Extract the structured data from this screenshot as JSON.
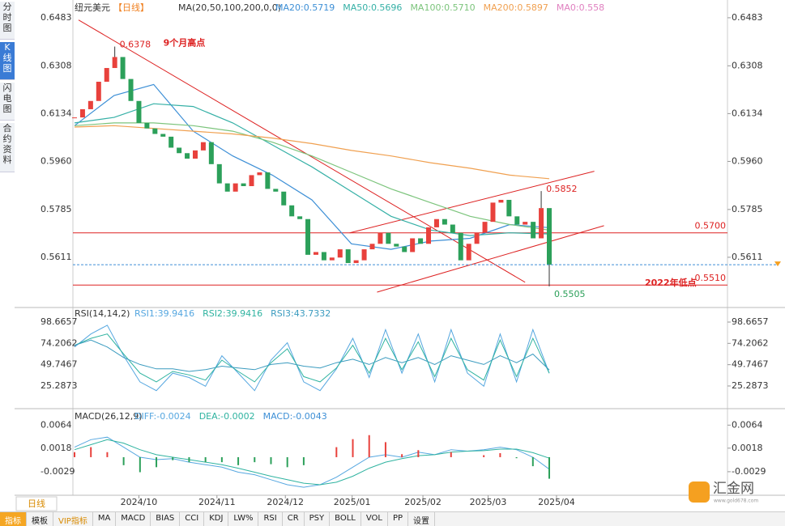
{
  "sidebar": [
    "分时图",
    "K线图",
    "闪电图",
    "合约资料"
  ],
  "header": {
    "symbol": "纽元美元",
    "period": "【日线】",
    "ma_title": "MA(20,50,100,200,0,0)",
    "ma_legend": [
      "MA20:0.5719",
      "MA50:0.5696",
      "MA100:0.5710",
      "MA200:0.5897",
      "MA0:0.558"
    ]
  },
  "chart_data": [
    {
      "type": "candlestick",
      "ylim": [
        0.5434,
        0.6524
      ],
      "yticks": [
        0.6483,
        0.6308,
        0.6134,
        {
          "value": 0.596,
          "label": "0.5960"
        },
        0.5785,
        0.5611
      ],
      "xticks": [
        {
          "value": 8,
          "label": "2024/10"
        },
        {
          "value": 17.7,
          "label": "2024/11"
        },
        {
          "value": 26.2,
          "label": "2024/12"
        },
        {
          "value": 34.5,
          "label": "2025/01"
        },
        {
          "value": 43.3,
          "label": "2025/02"
        },
        {
          "value": 51.4,
          "label": "2025/03"
        },
        {
          "value": 59.9,
          "label": "2025/04"
        }
      ],
      "up_color": "#e8413c",
      "down_color": "#2ca05a",
      "values": [
        0.612,
        0.615,
        0.618,
        0.625,
        0.63,
        0.634,
        0.626,
        0.618,
        0.61,
        0.608,
        0.606,
        0.605,
        0.601,
        0.599,
        0.597,
        0.6,
        0.603,
        0.595,
        0.588,
        0.585,
        0.588,
        0.587,
        0.591,
        0.592,
        0.586,
        0.585,
        0.58,
        0.576,
        0.575,
        0.562,
        0.563,
        0.56,
        0.561,
        0.564,
        0.559,
        0.56,
        0.564,
        0.566,
        0.57,
        0.566,
        0.565,
        0.563,
        0.568,
        0.566,
        0.572,
        0.575,
        0.573,
        0.57,
        0.56,
        0.566,
        0.57,
        0.574,
        0.581,
        0.582,
        0.576,
        0.573,
        0.574,
        0.568,
        0.579,
        0.5584
      ],
      "series": [
        {
          "name": "MA20",
          "color": "#3d8fd6",
          "values": [
            0.609,
            0.62,
            0.624,
            0.607,
            0.598,
            0.591,
            0.582,
            0.566,
            0.564,
            0.567,
            0.568,
            0.573,
            0.5719
          ]
        },
        {
          "name": "MA50",
          "color": "#35b0a6",
          "values": [
            0.61,
            0.612,
            0.617,
            0.616,
            0.61,
            0.602,
            0.594,
            0.585,
            0.576,
            0.571,
            0.569,
            0.57,
            0.5696
          ]
        },
        {
          "name": "MA100",
          "color": "#7cc47c",
          "values": [
            0.609,
            0.61,
            0.61,
            0.609,
            0.607,
            0.603,
            0.598,
            0.592,
            0.586,
            0.581,
            0.576,
            0.573,
            0.571
          ]
        },
        {
          "name": "MA200",
          "color": "#f0a050",
          "values": [
            0.6085,
            0.609,
            0.608,
            0.607,
            0.606,
            0.6045,
            0.6025,
            0.6,
            0.598,
            0.5955,
            0.5935,
            0.591,
            0.5897
          ]
        }
      ],
      "levels": [
        {
          "value": 0.57,
          "label": "0.5700"
        },
        {
          "value": 0.551,
          "label": "0.5510",
          "text": "2022年低点"
        }
      ],
      "extremes": [
        {
          "value": 0.6378,
          "index": 5,
          "text": "9个月高点"
        },
        {
          "value": 0.5852,
          "index": 58
        },
        {
          "value": 0.5505,
          "index": 59
        }
      ],
      "trendlines": [
        {
          "from": [
            0.5,
            0.6475
          ],
          "to": [
            56,
            0.552
          ]
        },
        {
          "from": [
            34.2,
            0.57
          ],
          "to": [
            64.6,
            0.5924
          ]
        },
        {
          "from": [
            37.6,
            0.5484
          ],
          "to": [
            65.8,
            0.5726
          ]
        }
      ]
    },
    {
      "type": "line",
      "title": "RSI(14,14,2)",
      "ylim": [
        1.1,
        112.6
      ],
      "yticks": [
        98.6657,
        74.2062,
        49.7467,
        25.2873
      ],
      "series": [
        {
          "name": "RSI1:39.9416",
          "color": "#56a7e0",
          "values": [
            70,
            85,
            95,
            60,
            30,
            20,
            40,
            35,
            25,
            60,
            40,
            20,
            55,
            75,
            30,
            20,
            45,
            80,
            35,
            90,
            40,
            85,
            30,
            90,
            40,
            25,
            85,
            30,
            90,
            39.94
          ]
        },
        {
          "name": "RSI2:39.9416",
          "color": "#2fb3a0",
          "values": [
            72,
            80,
            85,
            62,
            40,
            30,
            42,
            38,
            32,
            55,
            42,
            30,
            52,
            68,
            36,
            30,
            46,
            72,
            40,
            80,
            44,
            76,
            36,
            80,
            44,
            32,
            78,
            36,
            80,
            39.94
          ]
        },
        {
          "name": "RSI3:43.7332",
          "color": "#3a9bbf",
          "values": [
            72,
            78,
            70,
            58,
            50,
            45,
            45,
            42,
            44,
            48,
            46,
            44,
            50,
            52,
            48,
            46,
            52,
            56,
            50,
            58,
            52,
            58,
            50,
            60,
            55,
            50,
            60,
            52,
            62,
            43.73
          ]
        }
      ]
    },
    {
      "type": "macd",
      "title": "MACD(26,12,9)",
      "ylim": [
        -0.0076,
        0.0092
      ],
      "yticks": [
        0.0064,
        0.0018,
        -0.0029
      ],
      "up_color": "#e8413c",
      "down_color": "#2ca05a",
      "series": [
        {
          "name": "DIFF:-0.0024",
          "color": "#56a7e0",
          "values": [
            0.002,
            0.0035,
            0.004,
            0.002,
            0,
            -0.0005,
            -0.0003,
            -0.001,
            -0.0015,
            -0.002,
            -0.003,
            -0.0035,
            -0.0045,
            -0.0055,
            -0.006,
            -0.0055,
            -0.004,
            -0.002,
            0,
            0.0005,
            0,
            0.001,
            0.0005,
            0.0015,
            0.0012,
            0.0015,
            0.002,
            0.0015,
            0,
            -0.0024
          ]
        },
        {
          "name": "DEA:-0.0002",
          "color": "#2fb3a0",
          "values": [
            0.0015,
            0.0025,
            0.0035,
            0.0028,
            0.0015,
            0.0005,
            0,
            -0.0005,
            -0.001,
            -0.0015,
            -0.0022,
            -0.003,
            -0.0038,
            -0.0045,
            -0.0052,
            -0.0055,
            -0.005,
            -0.0038,
            -0.0022,
            -0.001,
            -0.0003,
            0.0003,
            0.0005,
            0.001,
            0.0012,
            0.0013,
            0.0016,
            0.0016,
            0.0009,
            -0.0002
          ]
        },
        {
          "name": "MACD:-0.0043",
          "values": [
            0.001,
            0.002,
            0.001,
            -0.0016,
            -0.003,
            -0.002,
            -0.0006,
            -0.001,
            -0.001,
            -0.001,
            -0.0016,
            -0.001,
            -0.0014,
            -0.002,
            -0.0016,
            0,
            0.002,
            0.0036,
            0.0044,
            0.003,
            0.0006,
            0.0014,
            0,
            0.001,
            0,
            0.0004,
            0.0008,
            -0.0002,
            -0.0018,
            -0.0043
          ]
        }
      ]
    }
  ],
  "tab": "日线",
  "toolbar": [
    "指标",
    "模板",
    "VIP指标",
    "MA",
    "MACD",
    "BIAS",
    "CCI",
    "KDJ",
    "LW%",
    "RSI",
    "CR",
    "PSY",
    "BOLL",
    "VOL",
    "PP",
    "设置"
  ],
  "logo": {
    "name": "汇金网",
    "url": "www.gold678.com"
  }
}
